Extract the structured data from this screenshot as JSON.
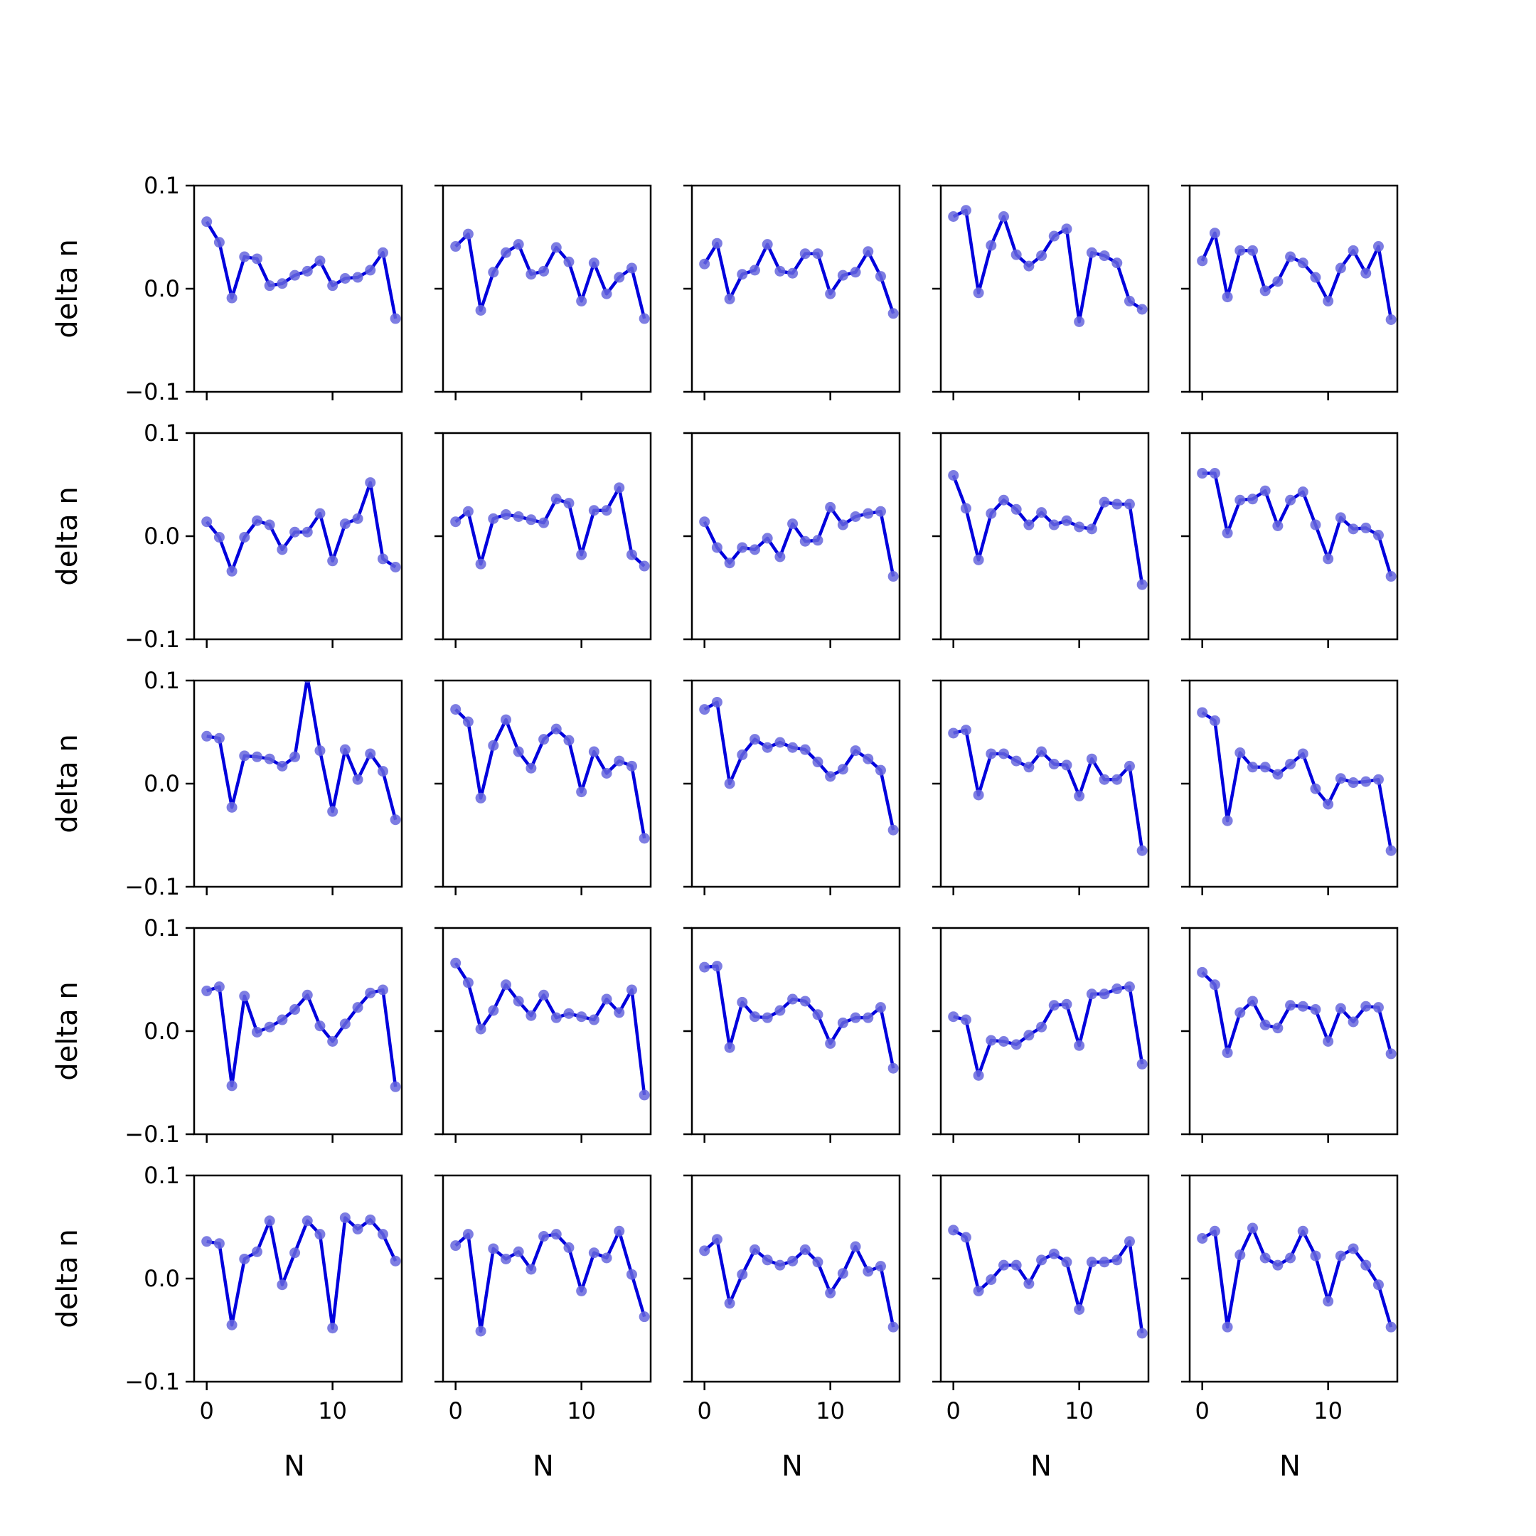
{
  "chart_data": {
    "type": "line",
    "layout": "5x5 grid of small-multiple line plots with shared axes",
    "xlabel": "N",
    "ylabel": "delta n",
    "xlim": [
      -1,
      15.5
    ],
    "ylim": [
      -0.1,
      0.1
    ],
    "xticks": [
      0,
      10
    ],
    "xtick_labels": [
      "0",
      "10"
    ],
    "yticks": [
      -0.1,
      0.0,
      0.1
    ],
    "ytick_labels": [
      "−0.1",
      "0.0",
      "0.1"
    ],
    "line_color": "#0000dd",
    "marker_color": "#6666dd",
    "x": [
      0,
      1,
      2,
      3,
      4,
      5,
      6,
      7,
      8,
      9,
      10,
      11,
      12,
      13,
      14,
      15
    ],
    "panels": [
      [
        0.065,
        0.045,
        -0.009,
        0.031,
        0.029,
        0.003,
        0.005,
        0.013,
        0.017,
        0.027,
        0.003,
        0.01,
        0.011,
        0.018,
        0.035,
        -0.029
      ],
      [
        0.041,
        0.053,
        -0.021,
        0.016,
        0.035,
        0.043,
        0.014,
        0.017,
        0.04,
        0.026,
        -0.012,
        0.025,
        -0.005,
        0.011,
        0.02,
        -0.029
      ],
      [
        0.024,
        0.044,
        -0.01,
        0.014,
        0.018,
        0.043,
        0.017,
        0.015,
        0.034,
        0.034,
        -0.005,
        0.013,
        0.016,
        0.036,
        0.012,
        -0.024
      ],
      [
        0.07,
        0.076,
        -0.004,
        0.042,
        0.07,
        0.033,
        0.022,
        0.032,
        0.051,
        0.058,
        -0.032,
        0.035,
        0.032,
        0.025,
        -0.012,
        -0.02
      ],
      [
        0.027,
        0.054,
        -0.008,
        0.037,
        0.037,
        -0.002,
        0.007,
        0.031,
        0.025,
        0.011,
        -0.012,
        0.02,
        0.037,
        0.015,
        0.041,
        -0.03
      ],
      [
        0.014,
        -0.001,
        -0.034,
        -0.001,
        0.015,
        0.011,
        -0.013,
        0.004,
        0.004,
        0.022,
        -0.024,
        0.012,
        0.017,
        0.052,
        -0.022,
        -0.03
      ],
      [
        0.014,
        0.024,
        -0.027,
        0.017,
        0.021,
        0.019,
        0.016,
        0.013,
        0.036,
        0.032,
        -0.018,
        0.025,
        0.025,
        0.047,
        -0.018,
        -0.029
      ],
      [
        0.014,
        -0.011,
        -0.026,
        -0.011,
        -0.013,
        -0.002,
        -0.02,
        0.012,
        -0.005,
        -0.004,
        0.028,
        0.011,
        0.019,
        0.022,
        0.024,
        -0.039
      ],
      [
        0.059,
        0.027,
        -0.023,
        0.022,
        0.035,
        0.026,
        0.011,
        0.023,
        0.011,
        0.015,
        0.009,
        0.007,
        0.033,
        0.031,
        0.031,
        -0.047
      ],
      [
        0.061,
        0.061,
        0.003,
        0.035,
        0.036,
        0.044,
        0.01,
        0.035,
        0.043,
        0.011,
        -0.022,
        0.018,
        0.007,
        0.008,
        0.001,
        -0.039
      ],
      [
        0.046,
        0.044,
        -0.023,
        0.027,
        0.026,
        0.024,
        0.017,
        0.026,
        0.103,
        0.032,
        -0.027,
        0.033,
        0.004,
        0.029,
        0.012,
        -0.035
      ],
      [
        0.072,
        0.06,
        -0.014,
        0.037,
        0.062,
        0.031,
        0.015,
        0.043,
        0.053,
        0.042,
        -0.008,
        0.031,
        0.01,
        0.022,
        0.017,
        -0.053
      ],
      [
        0.072,
        0.079,
        0.0,
        0.028,
        0.043,
        0.035,
        0.04,
        0.035,
        0.033,
        0.021,
        0.007,
        0.014,
        0.032,
        0.024,
        0.013,
        -0.045
      ],
      [
        0.049,
        0.052,
        -0.011,
        0.029,
        0.029,
        0.022,
        0.016,
        0.031,
        0.019,
        0.018,
        -0.012,
        0.024,
        0.004,
        0.004,
        0.017,
        -0.065
      ],
      [
        0.069,
        0.061,
        -0.036,
        0.03,
        0.016,
        0.016,
        0.009,
        0.019,
        0.029,
        -0.005,
        -0.02,
        0.005,
        0.001,
        0.002,
        0.004,
        -0.065
      ],
      [
        0.039,
        0.043,
        -0.053,
        0.034,
        -0.001,
        0.004,
        0.011,
        0.021,
        0.035,
        0.005,
        -0.01,
        0.007,
        0.023,
        0.037,
        0.04,
        -0.054
      ],
      [
        0.066,
        0.047,
        0.002,
        0.02,
        0.045,
        0.029,
        0.015,
        0.035,
        0.013,
        0.017,
        0.014,
        0.011,
        0.031,
        0.018,
        0.04,
        -0.062
      ],
      [
        0.062,
        0.063,
        -0.016,
        0.028,
        0.014,
        0.013,
        0.02,
        0.031,
        0.029,
        0.016,
        -0.012,
        0.008,
        0.013,
        0.013,
        0.023,
        -0.036
      ],
      [
        0.014,
        0.011,
        -0.043,
        -0.009,
        -0.01,
        -0.013,
        -0.004,
        0.004,
        0.025,
        0.026,
        -0.014,
        0.036,
        0.036,
        0.041,
        0.043,
        -0.032
      ],
      [
        0.057,
        0.045,
        -0.021,
        0.018,
        0.029,
        0.006,
        0.003,
        0.025,
        0.024,
        0.021,
        -0.01,
        0.022,
        0.009,
        0.024,
        0.023,
        -0.022
      ],
      [
        0.036,
        0.034,
        -0.045,
        0.019,
        0.026,
        0.056,
        -0.006,
        0.025,
        0.056,
        0.043,
        -0.048,
        0.059,
        0.048,
        0.057,
        0.043,
        0.017
      ],
      [
        0.032,
        0.043,
        -0.051,
        0.029,
        0.019,
        0.026,
        0.009,
        0.041,
        0.043,
        0.03,
        -0.012,
        0.025,
        0.02,
        0.046,
        0.004,
        -0.037
      ],
      [
        0.027,
        0.038,
        -0.024,
        0.004,
        0.028,
        0.018,
        0.013,
        0.017,
        0.028,
        0.016,
        -0.014,
        0.005,
        0.031,
        0.007,
        0.012,
        -0.047
      ],
      [
        0.047,
        0.04,
        -0.012,
        -0.001,
        0.013,
        0.013,
        -0.005,
        0.018,
        0.024,
        0.016,
        -0.03,
        0.016,
        0.016,
        0.018,
        0.036,
        -0.053
      ],
      [
        0.039,
        0.046,
        -0.047,
        0.023,
        0.049,
        0.02,
        0.013,
        0.02,
        0.046,
        0.022,
        -0.022,
        0.022,
        0.029,
        0.013,
        -0.006,
        -0.047
      ]
    ]
  }
}
